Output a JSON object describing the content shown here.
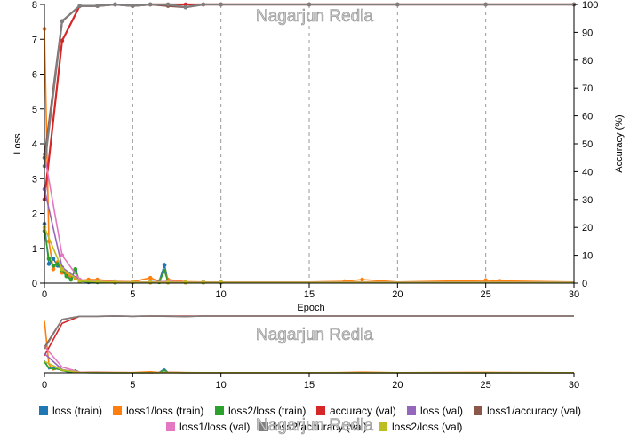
{
  "watermark": "Nagarjun Redla",
  "chart_data": {
    "type": "line",
    "xlabel": "Epoch",
    "ylabel_left": "Loss",
    "ylabel_right": "Accuracy (%)",
    "xlim": [
      0,
      30
    ],
    "ylim_left": [
      0,
      8
    ],
    "ylim_right": [
      0,
      100
    ],
    "x_ticks": [
      "0",
      "5",
      "10",
      "15",
      "20",
      "25",
      "30"
    ],
    "y_left_ticks": [
      "0",
      "1",
      "2",
      "3",
      "4",
      "5",
      "6",
      "7",
      "8"
    ],
    "y_right_ticks": [
      "0",
      "10",
      "20",
      "30",
      "40",
      "50",
      "60",
      "70",
      "80",
      "90",
      "100"
    ],
    "grid": "vertical dashed at x ticks",
    "legend_position": "bottom",
    "colors": {
      "loss_train": "#1f77b4",
      "loss1_train": "#ff7f0e",
      "loss2_train": "#2ca02c",
      "accuracy_val": "#d62728",
      "loss_val": "#9467bd",
      "loss1_accuracy_val": "#8c564b",
      "loss1_loss_val": "#e377c2",
      "loss2_accuracy_val": "#7f7f7f",
      "loss2_loss_val": "#bcbd22"
    },
    "series": [
      {
        "name": "loss (train)",
        "axis": "left",
        "points": [
          [
            0,
            1.7
          ],
          [
            0.25,
            0.55
          ],
          [
            0.5,
            0.7
          ],
          [
            0.75,
            0.5
          ],
          [
            1,
            0.45
          ],
          [
            1.25,
            0.2
          ],
          [
            1.5,
            0.15
          ],
          [
            1.75,
            0.35
          ],
          [
            2,
            0.05
          ],
          [
            2.5,
            0.03
          ],
          [
            3,
            0.03
          ],
          [
            4,
            0.02
          ],
          [
            5,
            0.02
          ],
          [
            6,
            0.03
          ],
          [
            6.5,
            0.05
          ],
          [
            6.8,
            0.52
          ],
          [
            7,
            0.05
          ],
          [
            8,
            0.02
          ],
          [
            9,
            0.02
          ],
          [
            10,
            0.02
          ],
          [
            12,
            0.02
          ],
          [
            15,
            0.02
          ],
          [
            18,
            0.02
          ],
          [
            20,
            0.02
          ],
          [
            25,
            0.02
          ],
          [
            30,
            0.02
          ]
        ]
      },
      {
        "name": "loss1/loss (train)",
        "axis": "left",
        "points": [
          [
            0,
            7.3
          ],
          [
            0.25,
            1.2
          ],
          [
            0.5,
            0.4
          ],
          [
            0.75,
            0.6
          ],
          [
            1,
            0.3
          ],
          [
            1.25,
            0.25
          ],
          [
            1.5,
            0.2
          ],
          [
            1.75,
            0.15
          ],
          [
            2,
            0.08
          ],
          [
            2.5,
            0.1
          ],
          [
            3,
            0.1
          ],
          [
            4,
            0.05
          ],
          [
            5,
            0.04
          ],
          [
            6,
            0.15
          ],
          [
            6.5,
            0.05
          ],
          [
            6.8,
            0.35
          ],
          [
            7,
            0.1
          ],
          [
            8,
            0.04
          ],
          [
            9,
            0.03
          ],
          [
            10,
            0.03
          ],
          [
            12,
            0.03
          ],
          [
            15,
            0.03
          ],
          [
            17,
            0.05
          ],
          [
            18,
            0.1
          ],
          [
            20,
            0.03
          ],
          [
            25,
            0.08
          ],
          [
            25.8,
            0.06
          ],
          [
            30,
            0.03
          ]
        ]
      },
      {
        "name": "loss2/loss (train)",
        "axis": "left",
        "points": [
          [
            0,
            1.5
          ],
          [
            0.25,
            0.7
          ],
          [
            0.5,
            0.5
          ],
          [
            0.75,
            0.55
          ],
          [
            1,
            0.35
          ],
          [
            1.25,
            0.2
          ],
          [
            1.5,
            0.1
          ],
          [
            1.75,
            0.4
          ],
          [
            2,
            0.05
          ],
          [
            2.5,
            0.04
          ],
          [
            3,
            0.03
          ],
          [
            4,
            0.02
          ],
          [
            5,
            0.02
          ],
          [
            6,
            0.03
          ],
          [
            6.5,
            0.03
          ],
          [
            6.8,
            0.35
          ],
          [
            7,
            0.04
          ],
          [
            8,
            0.02
          ],
          [
            10,
            0.02
          ],
          [
            15,
            0.02
          ],
          [
            20,
            0.02
          ],
          [
            25,
            0.02
          ],
          [
            30,
            0.02
          ]
        ]
      },
      {
        "name": "accuracy (val)",
        "axis": "right",
        "points": [
          [
            0,
            30
          ],
          [
            1,
            87
          ],
          [
            2,
            99.5
          ],
          [
            3,
            99.5
          ],
          [
            4,
            100
          ],
          [
            5,
            99.5
          ],
          [
            6,
            100
          ],
          [
            7,
            100
          ],
          [
            8,
            100
          ],
          [
            9,
            100
          ],
          [
            10,
            100
          ],
          [
            15,
            100
          ],
          [
            20,
            100
          ],
          [
            25,
            100
          ],
          [
            30,
            100
          ]
        ]
      },
      {
        "name": "loss (val)",
        "axis": "left",
        "points": [
          [
            0,
            2.7
          ],
          [
            1,
            0.45
          ],
          [
            2,
            0.08
          ],
          [
            3,
            0.05
          ],
          [
            4,
            0.03
          ],
          [
            5,
            0.02
          ],
          [
            6,
            0.02
          ],
          [
            7,
            0.02
          ],
          [
            8,
            0.02
          ],
          [
            9,
            0.02
          ],
          [
            10,
            0.02
          ],
          [
            15,
            0.02
          ],
          [
            20,
            0.02
          ],
          [
            25,
            0.02
          ],
          [
            30,
            0.02
          ]
        ]
      },
      {
        "name": "loss1/accuracy (val)",
        "axis": "right",
        "points": [
          [
            0,
            45
          ],
          [
            1,
            94
          ],
          [
            2,
            99.5
          ],
          [
            3,
            99.5
          ],
          [
            4,
            100
          ],
          [
            5,
            99.5
          ],
          [
            6,
            100
          ],
          [
            7,
            99.5
          ],
          [
            8,
            99
          ],
          [
            9,
            100
          ],
          [
            10,
            100
          ],
          [
            15,
            100
          ],
          [
            20,
            100
          ],
          [
            25,
            100
          ],
          [
            30,
            100
          ]
        ]
      },
      {
        "name": "loss1/loss (val)",
        "axis": "left",
        "points": [
          [
            0,
            3.7
          ],
          [
            1,
            0.8
          ],
          [
            2,
            0.1
          ],
          [
            3,
            0.05
          ],
          [
            4,
            0.04
          ],
          [
            5,
            0.03
          ],
          [
            6,
            0.03
          ],
          [
            7,
            0.05
          ],
          [
            8,
            0.03
          ],
          [
            9,
            0.03
          ],
          [
            10,
            0.03
          ],
          [
            15,
            0.03
          ],
          [
            20,
            0.03
          ],
          [
            25,
            0.03
          ],
          [
            30,
            0.03
          ]
        ]
      },
      {
        "name": "loss2/accuracy (val)",
        "axis": "right",
        "points": [
          [
            0,
            42
          ],
          [
            1,
            94
          ],
          [
            2,
            99.5
          ],
          [
            3,
            99.5
          ],
          [
            4,
            100
          ],
          [
            5,
            99.5
          ],
          [
            6,
            100
          ],
          [
            7,
            100
          ],
          [
            8,
            99
          ],
          [
            9,
            100
          ],
          [
            10,
            100
          ],
          [
            15,
            100
          ],
          [
            20,
            100
          ],
          [
            25,
            100
          ],
          [
            30,
            100
          ]
        ]
      },
      {
        "name": "loss2/loss (val)",
        "axis": "left",
        "points": [
          [
            0,
            1.6
          ],
          [
            1,
            0.4
          ],
          [
            2,
            0.06
          ],
          [
            3,
            0.04
          ],
          [
            4,
            0.03
          ],
          [
            5,
            0.02
          ],
          [
            6,
            0.02
          ],
          [
            7,
            0.02
          ],
          [
            8,
            0.02
          ],
          [
            9,
            0.02
          ],
          [
            10,
            0.02
          ],
          [
            15,
            0.02
          ],
          [
            20,
            0.02
          ],
          [
            25,
            0.02
          ],
          [
            30,
            0.02
          ]
        ]
      }
    ],
    "legend": {
      "row1": [
        "loss (train)",
        "loss1/loss (train)",
        "loss2/loss (train)",
        "accuracy (val)",
        "loss (val)",
        "loss1/accuracy (val)"
      ],
      "row2": [
        "loss1/loss (val)",
        "loss2/accuracy (val)",
        "loss2/loss (val)"
      ]
    }
  }
}
